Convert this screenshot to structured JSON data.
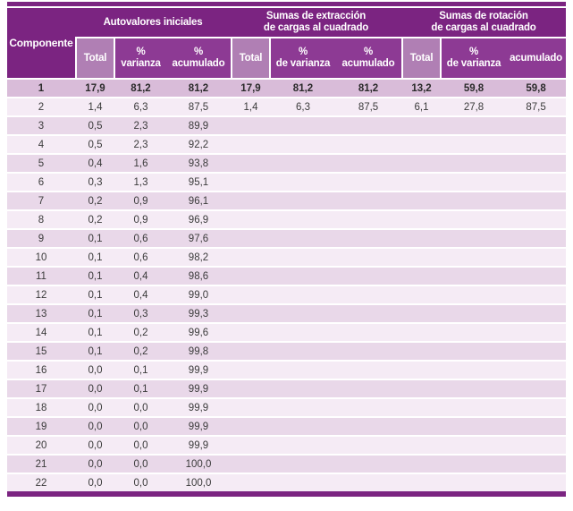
{
  "table": {
    "corner_header": "Componente",
    "groups": [
      {
        "title": "Autovalores iniciales"
      },
      {
        "title": "Sumas de extracción\nde cargas al cuadrado"
      },
      {
        "title": "Sumas de rotación\nde cargas al cuadrado"
      }
    ],
    "sub_headers": [
      "Total",
      "%\nvarianza",
      "%\nacumulado",
      "Total",
      "%\nde varianza",
      "%\nacumulado",
      "Total",
      "%\nde varianza",
      "acumulado"
    ],
    "rows": [
      [
        "1",
        "17,9",
        "81,2",
        "81,2",
        "17,9",
        "81,2",
        "81,2",
        "13,2",
        "59,8",
        "59,8"
      ],
      [
        "2",
        "1,4",
        "6,3",
        "87,5",
        "1,4",
        "6,3",
        "87,5",
        "6,1",
        "27,8",
        "87,5"
      ],
      [
        "3",
        "0,5",
        "2,3",
        "89,9"
      ],
      [
        "4",
        "0,5",
        "2,3",
        "92,2"
      ],
      [
        "5",
        "0,4",
        "1,6",
        "93,8"
      ],
      [
        "6",
        "0,3",
        "1,3",
        "95,1"
      ],
      [
        "7",
        "0,2",
        "0,9",
        "96,1"
      ],
      [
        "8",
        "0,2",
        "0,9",
        "96,9"
      ],
      [
        "9",
        "0,1",
        "0,6",
        "97,6"
      ],
      [
        "10",
        "0,1",
        "0,6",
        "98,2"
      ],
      [
        "11",
        "0,1",
        "0,4",
        "98,6"
      ],
      [
        "12",
        "0,1",
        "0,4",
        "99,0"
      ],
      [
        "13",
        "0,1",
        "0,3",
        "99,3"
      ],
      [
        "14",
        "0,1",
        "0,2",
        "99,6"
      ],
      [
        "15",
        "0,1",
        "0,2",
        "99,8"
      ],
      [
        "16",
        "0,0",
        "0,1",
        "99,9"
      ],
      [
        "17",
        "0,0",
        "0,1",
        "99,9"
      ],
      [
        "18",
        "0,0",
        "0,0",
        "99,9"
      ],
      [
        "19",
        "0,0",
        "0,0",
        "99,9"
      ],
      [
        "20",
        "0,0",
        "0,0",
        "99,9"
      ],
      [
        "21",
        "0,0",
        "0,0",
        "100,0"
      ],
      [
        "22",
        "0,0",
        "0,0",
        "100,0"
      ]
    ]
  },
  "colors": {
    "header_dark": "#7b2481",
    "header_mid": "#8d3a94",
    "header_light": "#b07fb4",
    "row_highlight": "#d9bcd9",
    "row_odd": "#e9d8e9",
    "row_even": "#f5ebf5",
    "text_data": "#3b3b3b",
    "text_header": "#ffffff"
  }
}
